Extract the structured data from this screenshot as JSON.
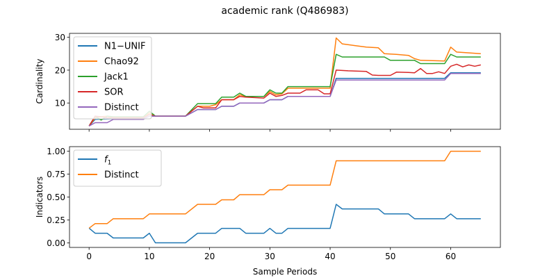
{
  "figure": {
    "title": "academic rank (Q486983)"
  },
  "colors": {
    "blue": "#1f77b4",
    "orange": "#ff7f0e",
    "green": "#2ca02c",
    "red": "#d62728",
    "purple": "#9467bd"
  },
  "chart_data": [
    {
      "type": "line",
      "title": "academic rank (Q486983)",
      "xlabel": "",
      "ylabel": "Cardinality",
      "xlim": [
        -3.25,
        68.25
      ],
      "ylim": [
        2.0,
        31.2
      ],
      "xticks": [
        0,
        10,
        20,
        30,
        40,
        50,
        60
      ],
      "xtick_labels_shown": false,
      "yticks": [
        10,
        20,
        30
      ],
      "ytick_labels": [
        "10",
        "20",
        "30"
      ],
      "legend": {
        "position": "top-left"
      },
      "series": [
        {
          "name": "N1−UNIF",
          "color": "#1f77b4",
          "x": [
            0,
            1,
            4,
            9,
            10,
            11,
            16,
            18,
            21,
            22,
            24,
            25,
            29,
            30,
            31,
            32,
            33,
            40,
            41,
            59,
            60,
            65
          ],
          "y": [
            3,
            5,
            5.2,
            5.2,
            6,
            6,
            6,
            8,
            8,
            9,
            9,
            10,
            10,
            11,
            11,
            11,
            12,
            12,
            17.5,
            17.5,
            19.2,
            19.2
          ]
        },
        {
          "name": "Chao92",
          "color": "#ff7f0e",
          "x": [
            0,
            1,
            2,
            3,
            4,
            9,
            10,
            11,
            16,
            18,
            20,
            21,
            22,
            24,
            25,
            26,
            29,
            30,
            31,
            32,
            33,
            40,
            41,
            42,
            44,
            46,
            48,
            49,
            51,
            53,
            54,
            55,
            59,
            60,
            61,
            65
          ],
          "y": [
            3,
            5.5,
            5.8,
            6,
            5.5,
            5.5,
            7,
            6,
            6,
            9,
            9,
            9.5,
            11,
            11,
            12.5,
            12,
            12,
            13.5,
            12.5,
            12.8,
            14.5,
            14.5,
            29.8,
            28,
            27.5,
            27,
            26.8,
            25,
            24.8,
            24.5,
            23.5,
            23,
            22.8,
            27,
            25.5,
            25
          ]
        },
        {
          "name": "Jack1",
          "color": "#2ca02c",
          "x": [
            0,
            1,
            2,
            3,
            4,
            9,
            10,
            11,
            16,
            18,
            21,
            22,
            24,
            25,
            26,
            29,
            30,
            31,
            32,
            33,
            40,
            41,
            42,
            49,
            50,
            54,
            55,
            59,
            60,
            61,
            65
          ],
          "y": [
            3,
            6,
            4.8,
            6,
            5.8,
            5.8,
            7.5,
            6,
            6,
            9.8,
            9.8,
            11.8,
            11.8,
            13,
            12,
            12,
            14,
            13,
            13,
            15,
            15,
            24.8,
            24,
            24,
            23,
            23,
            22,
            22,
            24.8,
            24,
            24
          ]
        },
        {
          "name": "SOR",
          "color": "#d62728",
          "x": [
            0,
            1,
            2,
            3,
            4,
            9,
            10,
            11,
            16,
            18,
            19,
            21,
            22,
            24,
            25,
            26,
            29,
            30,
            31,
            32,
            33,
            35,
            36,
            38,
            39,
            40,
            41,
            43,
            46,
            47,
            48,
            50,
            51,
            53,
            54,
            55,
            56,
            57,
            58,
            59,
            60,
            61,
            62,
            63,
            64,
            65
          ],
          "y": [
            3,
            6,
            5.8,
            5.5,
            5.5,
            5.5,
            6.5,
            6,
            6,
            9,
            8.5,
            8.5,
            11,
            11,
            12,
            11.8,
            11.5,
            13,
            12,
            12.3,
            13,
            13,
            14,
            14,
            12.8,
            12.8,
            20,
            19.8,
            19.6,
            18.5,
            18.4,
            18.4,
            19.4,
            19.3,
            19.2,
            20.5,
            19,
            19,
            19.5,
            19,
            21.2,
            21.8,
            21,
            21.6,
            21.2,
            21.6
          ]
        },
        {
          "name": "Distinct",
          "color": "#9467bd",
          "x": [
            0,
            1,
            3,
            4,
            9,
            10,
            11,
            16,
            18,
            21,
            22,
            24,
            25,
            29,
            30,
            31,
            32,
            33,
            40,
            41,
            59,
            60,
            65
          ],
          "y": [
            3,
            4,
            4,
            5,
            5,
            6,
            6,
            6,
            8,
            8,
            9,
            9,
            10,
            10,
            11,
            11,
            11,
            12,
            12,
            17,
            17,
            19,
            19
          ]
        }
      ]
    },
    {
      "type": "line",
      "title": "",
      "xlabel": "Sample Periods",
      "ylabel": "Indicators",
      "xlim": [
        -3.25,
        68.25
      ],
      "ylim": [
        -0.05,
        1.05
      ],
      "xticks": [
        0,
        10,
        20,
        30,
        40,
        50,
        60
      ],
      "xtick_labels": [
        "0",
        "10",
        "20",
        "30",
        "40",
        "50",
        "60"
      ],
      "yticks": [
        0.0,
        0.25,
        0.5,
        0.75,
        1.0
      ],
      "ytick_labels": [
        "0.00",
        "0.25",
        "0.50",
        "0.75",
        "1.00"
      ],
      "legend": {
        "position": "top-left"
      },
      "series": [
        {
          "name": "f1",
          "color": "#1f77b4",
          "x": [
            0,
            1,
            3,
            4,
            9,
            10,
            11,
            16,
            18,
            21,
            22,
            25,
            26,
            29,
            30,
            31,
            32,
            33,
            40,
            41,
            42,
            48,
            49,
            53,
            54,
            59,
            60,
            61,
            65
          ],
          "y": [
            0.16,
            0.105,
            0.105,
            0.053,
            0.053,
            0.105,
            0,
            0,
            0.105,
            0.105,
            0.158,
            0.158,
            0.105,
            0.105,
            0.158,
            0.105,
            0.105,
            0.158,
            0.158,
            0.42,
            0.37,
            0.37,
            0.316,
            0.316,
            0.263,
            0.263,
            0.316,
            0.263,
            0.263
          ]
        },
        {
          "name": "Distinct",
          "color": "#ff7f0e",
          "x": [
            0,
            1,
            3,
            4,
            9,
            10,
            11,
            16,
            18,
            21,
            22,
            24,
            25,
            29,
            30,
            32,
            33,
            40,
            41,
            59,
            60,
            65
          ],
          "y": [
            0.16,
            0.21,
            0.21,
            0.263,
            0.263,
            0.316,
            0.316,
            0.316,
            0.42,
            0.42,
            0.47,
            0.47,
            0.526,
            0.526,
            0.58,
            0.58,
            0.63,
            0.63,
            0.895,
            0.895,
            1.0,
            1.0
          ]
        }
      ]
    }
  ]
}
